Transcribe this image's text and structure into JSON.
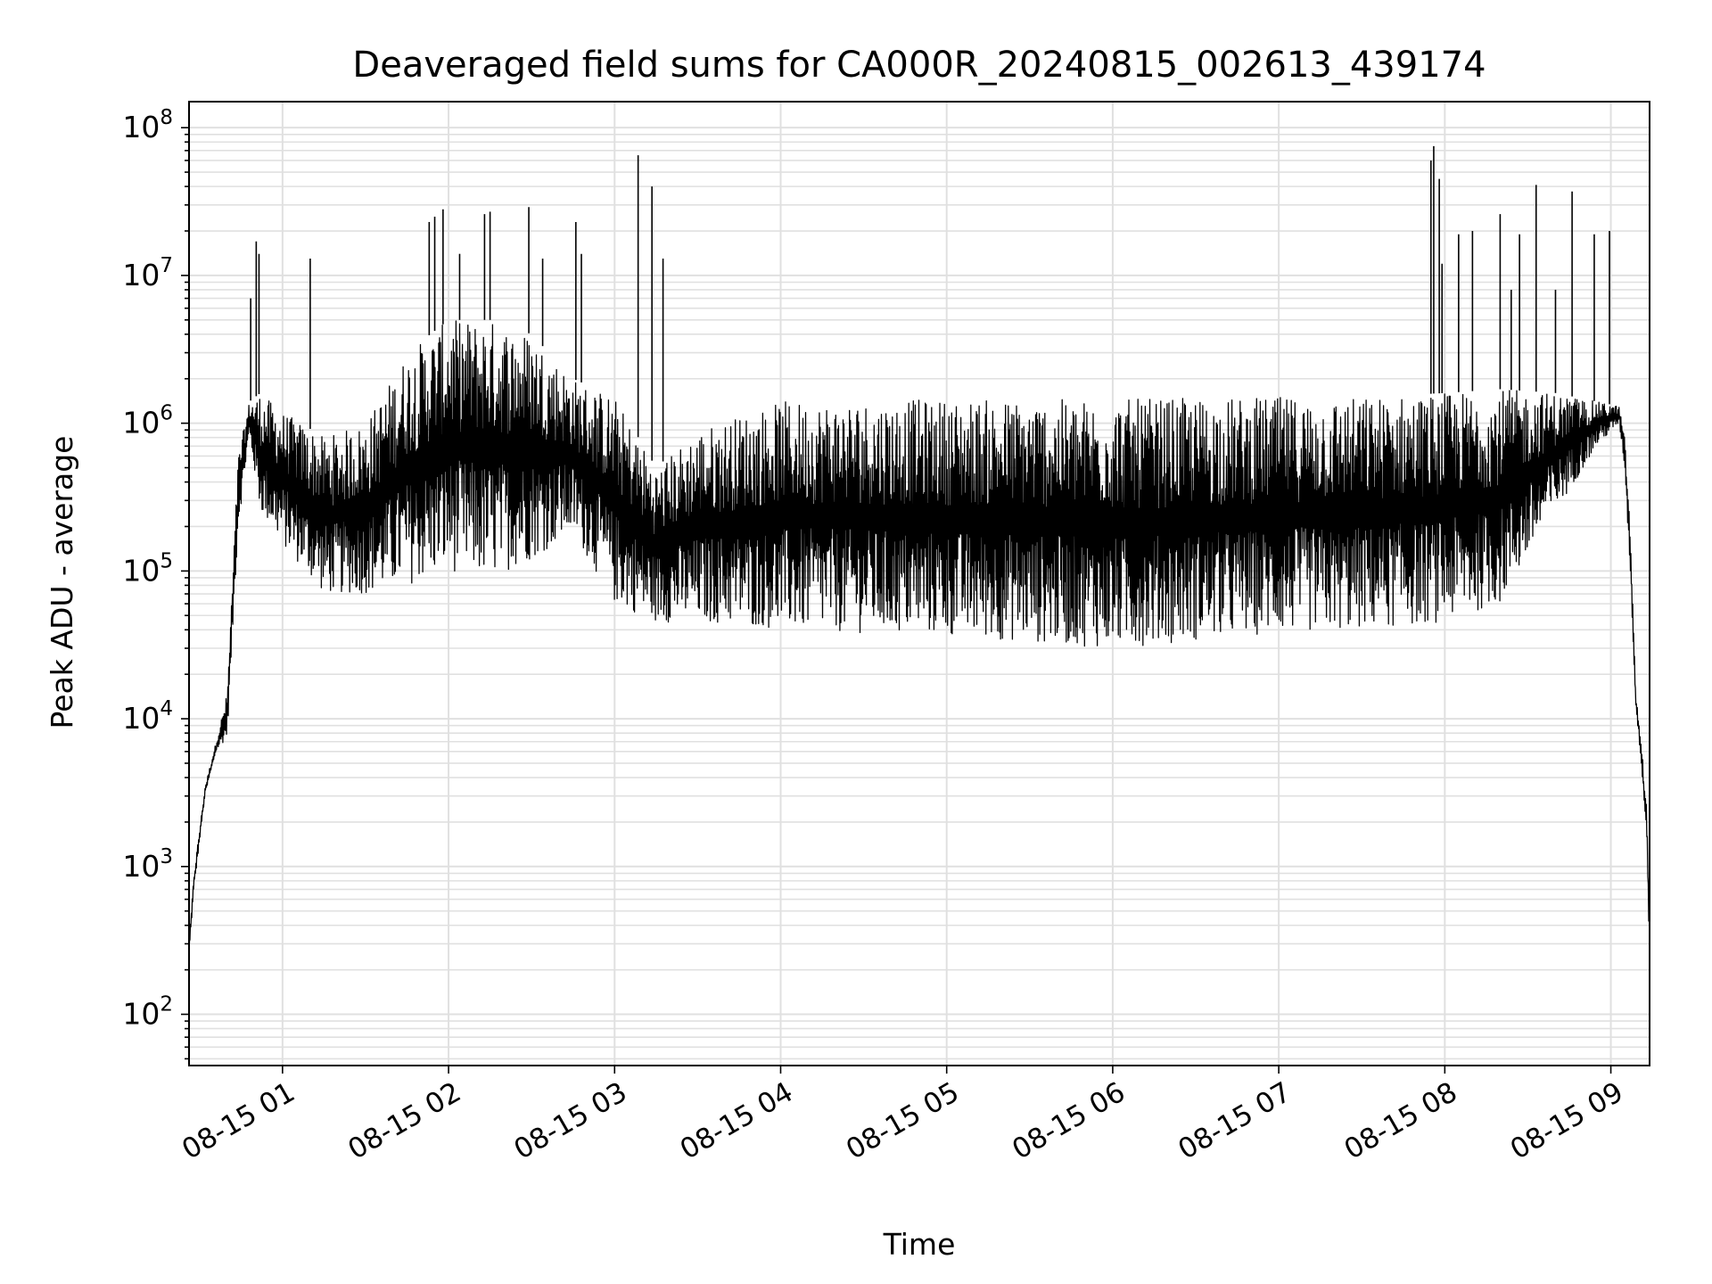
{
  "chart_data": {
    "type": "line",
    "title": "Deaveraged field sums for CA000R_20240815_002613_439174",
    "xlabel": "Time",
    "ylabel": "Peak ADU - average",
    "yscale": "log",
    "ylim": [
      45,
      150000000
    ],
    "xlim": [
      "2024-08-15T00:26:13",
      "2024-08-15T09:14:00"
    ],
    "grid": true,
    "legend": "none",
    "line_color": "#000000",
    "grid_color": "#e0e0e0",
    "x_ticks": [
      {
        "t": "2024-08-15T01:00",
        "label": "08-15 01"
      },
      {
        "t": "2024-08-15T02:00",
        "label": "08-15 02"
      },
      {
        "t": "2024-08-15T03:00",
        "label": "08-15 03"
      },
      {
        "t": "2024-08-15T04:00",
        "label": "08-15 04"
      },
      {
        "t": "2024-08-15T05:00",
        "label": "08-15 05"
      },
      {
        "t": "2024-08-15T06:00",
        "label": "08-15 06"
      },
      {
        "t": "2024-08-15T07:00",
        "label": "08-15 07"
      },
      {
        "t": "2024-08-15T08:00",
        "label": "08-15 08"
      },
      {
        "t": "2024-08-15T09:00",
        "label": "08-15 09"
      }
    ],
    "y_ticks": [
      {
        "value": 100,
        "base": "10",
        "exp": "2"
      },
      {
        "value": 1000,
        "base": "10",
        "exp": "3"
      },
      {
        "value": 10000,
        "base": "10",
        "exp": "4"
      },
      {
        "value": 100000,
        "base": "10",
        "exp": "5"
      },
      {
        "value": 1000000,
        "base": "10",
        "exp": "6"
      },
      {
        "value": 10000000,
        "base": "10",
        "exp": "7"
      },
      {
        "value": 100000000,
        "base": "10",
        "exp": "8"
      }
    ],
    "series": [
      {
        "envelope": [
          {
            "t": "2024-08-15T00:26:13",
            "low": 250,
            "high": 300
          },
          {
            "t": "2024-08-15T00:28:00",
            "low": 700,
            "high": 900
          },
          {
            "t": "2024-08-15T00:32:00",
            "low": 3000,
            "high": 3500
          },
          {
            "t": "2024-08-15T00:36:00",
            "low": 6000,
            "high": 7000
          },
          {
            "t": "2024-08-15T00:40:00",
            "low": 7500,
            "high": 15000
          },
          {
            "t": "2024-08-15T00:44:00",
            "low": 200000,
            "high": 600000
          },
          {
            "t": "2024-08-15T00:48:00",
            "low": 800000,
            "high": 1400000
          },
          {
            "t": "2024-08-15T00:52:00",
            "low": 250000,
            "high": 1600000
          },
          {
            "t": "2024-08-15T01:00:00",
            "low": 150000,
            "high": 1200000
          },
          {
            "t": "2024-08-15T01:15:00",
            "low": 70000,
            "high": 800000
          },
          {
            "t": "2024-08-15T01:30:00",
            "low": 70000,
            "high": 1000000
          },
          {
            "t": "2024-08-15T01:45:00",
            "low": 80000,
            "high": 3000000
          },
          {
            "t": "2024-08-15T02:00:00",
            "low": 100000,
            "high": 5000000
          },
          {
            "t": "2024-08-15T02:15:00",
            "low": 90000,
            "high": 5000000
          },
          {
            "t": "2024-08-15T02:30:00",
            "low": 120000,
            "high": 4000000
          },
          {
            "t": "2024-08-15T02:45:00",
            "low": 180000,
            "high": 2000000
          },
          {
            "t": "2024-08-15T03:00:00",
            "low": 60000,
            "high": 1500000
          },
          {
            "t": "2024-08-15T03:15:00",
            "low": 45000,
            "high": 500000
          },
          {
            "t": "2024-08-15T03:30:00",
            "low": 45000,
            "high": 900000
          },
          {
            "t": "2024-08-15T04:00:00",
            "low": 40000,
            "high": 1400000
          },
          {
            "t": "2024-08-15T05:00:00",
            "low": 36000,
            "high": 1450000
          },
          {
            "t": "2024-08-15T06:00:00",
            "low": 30000,
            "high": 1450000
          },
          {
            "t": "2024-08-15T07:00:00",
            "low": 38000,
            "high": 1500000
          },
          {
            "t": "2024-08-15T07:30:00",
            "low": 40000,
            "high": 1500000
          },
          {
            "t": "2024-08-15T08:00:00",
            "low": 45000,
            "high": 1600000
          },
          {
            "t": "2024-08-15T08:20:00",
            "low": 60000,
            "high": 1700000
          },
          {
            "t": "2024-08-15T08:40:00",
            "low": 250000,
            "high": 1600000
          },
          {
            "t": "2024-08-15T08:55:00",
            "low": 700000,
            "high": 1400000
          },
          {
            "t": "2024-08-15T09:03:00",
            "low": 1000000,
            "high": 1300000
          },
          {
            "t": "2024-08-15T09:05:00",
            "low": 500000,
            "high": 800000
          },
          {
            "t": "2024-08-15T09:07:00",
            "low": 100000,
            "high": 200000
          },
          {
            "t": "2024-08-15T09:09:00",
            "low": 12000,
            "high": 15000
          },
          {
            "t": "2024-08-15T09:11:00",
            "low": 5000,
            "high": 7000
          },
          {
            "t": "2024-08-15T09:13:00",
            "low": 1500,
            "high": 2500
          },
          {
            "t": "2024-08-15T09:14:00",
            "low": 200,
            "high": 400
          }
        ],
        "spikes": [
          {
            "t": "2024-08-15T00:48:30",
            "value": 7000000
          },
          {
            "t": "2024-08-15T00:50:30",
            "value": 17000000
          },
          {
            "t": "2024-08-15T00:51:30",
            "value": 14000000
          },
          {
            "t": "2024-08-15T01:10:00",
            "value": 13000000
          },
          {
            "t": "2024-08-15T01:53:00",
            "value": 23000000
          },
          {
            "t": "2024-08-15T01:55:00",
            "value": 25000000
          },
          {
            "t": "2024-08-15T01:58:00",
            "value": 28000000
          },
          {
            "t": "2024-08-15T02:04:00",
            "value": 14000000
          },
          {
            "t": "2024-08-15T02:13:00",
            "value": 26000000
          },
          {
            "t": "2024-08-15T02:15:00",
            "value": 27000000
          },
          {
            "t": "2024-08-15T02:29:00",
            "value": 29000000
          },
          {
            "t": "2024-08-15T02:34:00",
            "value": 13000000
          },
          {
            "t": "2024-08-15T02:46:00",
            "value": 23000000
          },
          {
            "t": "2024-08-15T02:48:00",
            "value": 14000000
          },
          {
            "t": "2024-08-15T03:08:30",
            "value": 65000000
          },
          {
            "t": "2024-08-15T03:13:30",
            "value": 40000000
          },
          {
            "t": "2024-08-15T03:17:30",
            "value": 13000000
          },
          {
            "t": "2024-08-15T07:55:00",
            "value": 60000000
          },
          {
            "t": "2024-08-15T07:56:00",
            "value": 75000000
          },
          {
            "t": "2024-08-15T07:58:00",
            "value": 45000000
          },
          {
            "t": "2024-08-15T07:59:00",
            "value": 12000000
          },
          {
            "t": "2024-08-15T08:05:00",
            "value": 19000000
          },
          {
            "t": "2024-08-15T08:10:00",
            "value": 20000000
          },
          {
            "t": "2024-08-15T08:20:00",
            "value": 26000000
          },
          {
            "t": "2024-08-15T08:24:00",
            "value": 8000000
          },
          {
            "t": "2024-08-15T08:27:00",
            "value": 19000000
          },
          {
            "t": "2024-08-15T08:33:00",
            "value": 41000000
          },
          {
            "t": "2024-08-15T08:40:00",
            "value": 8000000
          },
          {
            "t": "2024-08-15T08:46:00",
            "value": 37000000
          },
          {
            "t": "2024-08-15T08:54:00",
            "value": 19000000
          },
          {
            "t": "2024-08-15T08:59:30",
            "value": 20000000
          }
        ]
      }
    ]
  }
}
